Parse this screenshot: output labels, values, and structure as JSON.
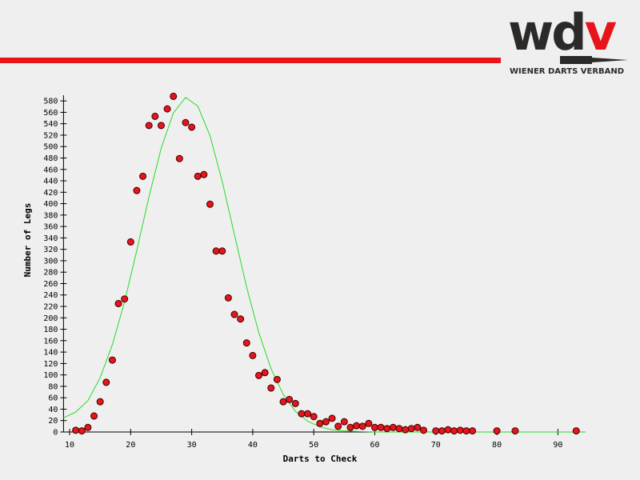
{
  "logo": {
    "mark_dark": "wd",
    "mark_red": "v",
    "name": "WIENER DARTS VERBAND"
  },
  "chart_data": {
    "type": "scatter",
    "x_label": "Darts to Check",
    "y_label": "Number of Legs",
    "xlim": [
      9,
      94.5
    ],
    "ylim": [
      0,
      590
    ],
    "xticks": [
      10,
      20,
      30,
      40,
      50,
      60,
      70,
      80,
      90
    ],
    "yticks": [
      0,
      20,
      40,
      60,
      80,
      100,
      120,
      140,
      160,
      180,
      200,
      220,
      240,
      260,
      280,
      300,
      320,
      340,
      360,
      380,
      400,
      420,
      440,
      460,
      480,
      500,
      520,
      540,
      560,
      580
    ],
    "series": [
      {
        "type": "scatter",
        "color": "#e8141b",
        "x": [
          11,
          12,
          13,
          14,
          15,
          16,
          17,
          18,
          19,
          20,
          21,
          22,
          23,
          24,
          25,
          26,
          27,
          28,
          29,
          30,
          31,
          32,
          33,
          34,
          35,
          36,
          37,
          38,
          39,
          40,
          41,
          42,
          43,
          44,
          45,
          46,
          47,
          48,
          49,
          50,
          51,
          52,
          53,
          54,
          55,
          56,
          57,
          58,
          59,
          60,
          61,
          62,
          63,
          64,
          65,
          66,
          67,
          68,
          70,
          71,
          72,
          73,
          74,
          75,
          76,
          80,
          83,
          93
        ],
        "values": [
          3,
          2,
          8,
          28,
          53,
          87,
          126,
          225,
          233,
          333,
          423,
          448,
          537,
          553,
          537,
          566,
          588,
          479,
          542,
          534,
          448,
          451,
          399,
          317,
          317,
          235,
          206,
          198,
          156,
          134,
          99,
          104,
          77,
          92,
          53,
          57,
          50,
          32,
          32,
          27,
          15,
          18,
          24,
          10,
          18,
          8,
          11,
          10,
          15,
          8,
          8,
          6,
          8,
          6,
          4,
          6,
          8,
          3,
          2,
          2,
          4,
          2,
          3,
          2,
          2,
          2,
          2,
          2
        ]
      },
      {
        "type": "line",
        "color": "#22dd22",
        "x": [
          9,
          11,
          13,
          15,
          17,
          19,
          21,
          23,
          25,
          27,
          29,
          31,
          33,
          35,
          37,
          39,
          41,
          43,
          45,
          47,
          49,
          51,
          53,
          55,
          57,
          60,
          70,
          94.5
        ],
        "values": [
          25,
          35,
          55,
          95,
          153,
          228,
          318,
          412,
          497,
          559,
          586,
          571,
          519,
          439,
          346,
          254,
          174,
          111,
          66,
          36,
          19,
          9,
          4,
          2,
          1,
          0,
          0,
          0
        ]
      }
    ]
  }
}
